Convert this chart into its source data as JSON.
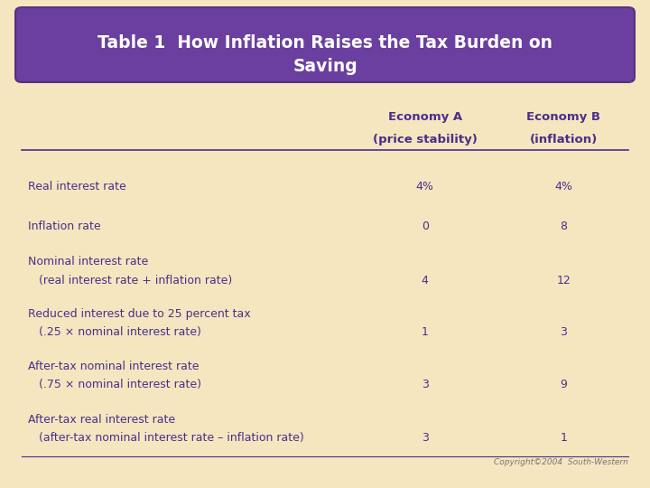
{
  "title_line1": "Table 1  How Inflation Raises the Tax Burden on",
  "title_line2": "Saving",
  "title_bg_color": "#6B3FA0",
  "title_text_color": "#FFFFFF",
  "background_color": "#F5E6C0",
  "table_text_color": "#4B2E8A",
  "header_text_color": "#4B2E8A",
  "copyright_text": "Copyright©2004  South-Western",
  "col_header1_line1": "Economy A",
  "col_header1_line2": "(price stability)",
  "col_header2_line1": "Economy B",
  "col_header2_line2": "(inflation)",
  "rows": [
    {
      "label_line1": "Real interest rate",
      "label_line2": "",
      "val1": "4%",
      "val2": "4%"
    },
    {
      "label_line1": "Inflation rate",
      "label_line2": "",
      "val1": "0",
      "val2": "8"
    },
    {
      "label_line1": "Nominal interest rate",
      "label_line2": "   (real interest rate + inflation rate)",
      "val1": "4",
      "val2": "12"
    },
    {
      "label_line1": "Reduced interest due to 25 percent tax",
      "label_line2": "   (.25 × nominal interest rate)",
      "val1": "1",
      "val2": "3"
    },
    {
      "label_line1": "After-tax nominal interest rate",
      "label_line2": "   (.75 × nominal interest rate)",
      "val1": "3",
      "val2": "9"
    },
    {
      "label_line1": "After-tax real interest rate",
      "label_line2": "   (after-tax nominal interest rate – inflation rate)",
      "val1": "3",
      "val2": "1"
    }
  ],
  "separator_color": "#4B2E8A",
  "figsize": [
    7.2,
    5.4
  ],
  "dpi": 100
}
